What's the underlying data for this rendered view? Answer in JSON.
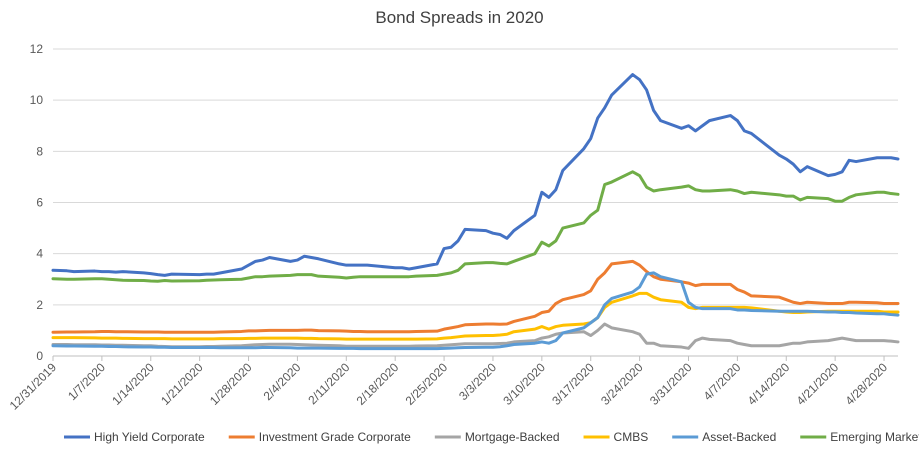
{
  "chart_data": {
    "type": "line",
    "title": "Bond Spreads in 2020",
    "xlabel": "",
    "ylabel": "",
    "ylim": [
      0,
      12
    ],
    "yticks": [
      0,
      2,
      4,
      6,
      8,
      10,
      12
    ],
    "x_tick_labels": [
      "12/31/2019",
      "1/7/2020",
      "1/14/2020",
      "1/21/2020",
      "1/28/2020",
      "2/4/2020",
      "2/11/2020",
      "2/18/2020",
      "2/25/2020",
      "3/3/2020",
      "3/10/2020",
      "3/17/2020",
      "3/24/2020",
      "3/31/2020",
      "4/7/2020",
      "4/14/2020",
      "4/21/2020",
      "4/28/2020"
    ],
    "grid": "horizontal",
    "legend_position": "bottom",
    "x": [
      "12/31/2019",
      "1/2/2020",
      "1/3/2020",
      "1/6/2020",
      "1/7/2020",
      "1/8/2020",
      "1/9/2020",
      "1/10/2020",
      "1/13/2020",
      "1/14/2020",
      "1/15/2020",
      "1/16/2020",
      "1/17/2020",
      "1/21/2020",
      "1/22/2020",
      "1/23/2020",
      "1/24/2020",
      "1/27/2020",
      "1/28/2020",
      "1/29/2020",
      "1/30/2020",
      "1/31/2020",
      "2/3/2020",
      "2/4/2020",
      "2/5/2020",
      "2/6/2020",
      "2/7/2020",
      "2/10/2020",
      "2/11/2020",
      "2/12/2020",
      "2/13/2020",
      "2/14/2020",
      "2/18/2020",
      "2/19/2020",
      "2/20/2020",
      "2/21/2020",
      "2/24/2020",
      "2/25/2020",
      "2/26/2020",
      "2/27/2020",
      "2/28/2020",
      "3/2/2020",
      "3/3/2020",
      "3/4/2020",
      "3/5/2020",
      "3/6/2020",
      "3/9/2020",
      "3/10/2020",
      "3/11/2020",
      "3/12/2020",
      "3/13/2020",
      "3/16/2020",
      "3/17/2020",
      "3/18/2020",
      "3/19/2020",
      "3/20/2020",
      "3/23/2020",
      "3/24/2020",
      "3/25/2020",
      "3/26/2020",
      "3/27/2020",
      "3/30/2020",
      "3/31/2020",
      "4/1/2020",
      "4/2/2020",
      "4/3/2020",
      "4/6/2020",
      "4/7/2020",
      "4/8/2020",
      "4/9/2020",
      "4/13/2020",
      "4/14/2020",
      "4/15/2020",
      "4/16/2020",
      "4/17/2020",
      "4/20/2020",
      "4/21/2020",
      "4/22/2020",
      "4/23/2020",
      "4/24/2020",
      "4/27/2020",
      "4/28/2020",
      "4/29/2020",
      "4/30/2020"
    ],
    "series": [
      {
        "name": "High Yield Corporate",
        "color": "#4472C4",
        "values": [
          3.35,
          3.33,
          3.3,
          3.32,
          3.3,
          3.3,
          3.28,
          3.3,
          3.25,
          3.22,
          3.18,
          3.15,
          3.2,
          3.18,
          3.2,
          3.2,
          3.25,
          3.4,
          3.55,
          3.7,
          3.75,
          3.85,
          3.7,
          3.75,
          3.9,
          3.85,
          3.8,
          3.6,
          3.55,
          3.55,
          3.55,
          3.55,
          3.45,
          3.45,
          3.4,
          3.45,
          3.6,
          4.2,
          4.25,
          4.5,
          4.95,
          4.9,
          4.8,
          4.75,
          4.6,
          4.9,
          5.5,
          6.4,
          6.2,
          6.5,
          7.25,
          8.1,
          8.5,
          9.3,
          9.7,
          10.2,
          11.0,
          10.8,
          10.4,
          9.6,
          9.2,
          8.9,
          9.0,
          8.8,
          9.0,
          9.2,
          9.4,
          9.2,
          8.8,
          8.7,
          7.85,
          7.7,
          7.5,
          7.2,
          7.4,
          7.05,
          7.1,
          7.2,
          7.65,
          7.6,
          7.75,
          7.75,
          7.75,
          7.7
        ]
      },
      {
        "name": "Investment Grade Corporate",
        "color": "#ED7D31",
        "values": [
          0.93,
          0.94,
          0.94,
          0.95,
          0.96,
          0.96,
          0.95,
          0.95,
          0.94,
          0.94,
          0.94,
          0.93,
          0.93,
          0.93,
          0.93,
          0.93,
          0.94,
          0.96,
          0.98,
          0.98,
          0.99,
          1.0,
          1.0,
          1.0,
          1.01,
          1.01,
          0.99,
          0.98,
          0.97,
          0.96,
          0.96,
          0.95,
          0.95,
          0.95,
          0.95,
          0.96,
          0.97,
          1.05,
          1.1,
          1.15,
          1.22,
          1.25,
          1.25,
          1.24,
          1.25,
          1.35,
          1.55,
          1.7,
          1.75,
          2.05,
          2.2,
          2.4,
          2.55,
          3.0,
          3.25,
          3.6,
          3.7,
          3.55,
          3.3,
          3.1,
          3.0,
          2.9,
          2.85,
          2.75,
          2.8,
          2.8,
          2.8,
          2.6,
          2.5,
          2.35,
          2.3,
          2.2,
          2.1,
          2.05,
          2.1,
          2.05,
          2.05,
          2.05,
          2.1,
          2.1,
          2.08,
          2.05,
          2.05,
          2.05
        ]
      },
      {
        "name": "Mortgage-Backed",
        "color": "#A5A5A5",
        "values": [
          0.45,
          0.45,
          0.44,
          0.44,
          0.43,
          0.43,
          0.42,
          0.42,
          0.4,
          0.4,
          0.38,
          0.37,
          0.36,
          0.36,
          0.37,
          0.37,
          0.38,
          0.4,
          0.42,
          0.44,
          0.45,
          0.46,
          0.46,
          0.45,
          0.44,
          0.43,
          0.42,
          0.4,
          0.38,
          0.38,
          0.38,
          0.38,
          0.38,
          0.38,
          0.38,
          0.39,
          0.4,
          0.42,
          0.44,
          0.46,
          0.48,
          0.48,
          0.48,
          0.49,
          0.5,
          0.55,
          0.6,
          0.7,
          0.75,
          0.85,
          0.9,
          0.95,
          0.8,
          1.0,
          1.25,
          1.1,
          0.95,
          0.85,
          0.5,
          0.5,
          0.4,
          0.35,
          0.3,
          0.6,
          0.7,
          0.65,
          0.6,
          0.5,
          0.45,
          0.4,
          0.4,
          0.45,
          0.5,
          0.5,
          0.55,
          0.6,
          0.65,
          0.7,
          0.65,
          0.6,
          0.6,
          0.6,
          0.58,
          0.55
        ]
      },
      {
        "name": "CMBS",
        "color": "#FFC000",
        "values": [
          0.72,
          0.72,
          0.72,
          0.71,
          0.7,
          0.7,
          0.7,
          0.69,
          0.68,
          0.68,
          0.68,
          0.68,
          0.67,
          0.67,
          0.67,
          0.67,
          0.68,
          0.68,
          0.69,
          0.69,
          0.7,
          0.7,
          0.7,
          0.7,
          0.69,
          0.69,
          0.68,
          0.67,
          0.66,
          0.66,
          0.66,
          0.66,
          0.66,
          0.66,
          0.66,
          0.66,
          0.67,
          0.7,
          0.72,
          0.75,
          0.78,
          0.8,
          0.8,
          0.82,
          0.85,
          0.95,
          1.05,
          1.15,
          1.05,
          1.15,
          1.2,
          1.25,
          1.3,
          1.5,
          1.9,
          2.1,
          2.35,
          2.45,
          2.45,
          2.3,
          2.2,
          2.1,
          1.9,
          1.85,
          1.9,
          1.9,
          1.9,
          1.9,
          1.9,
          1.88,
          1.75,
          1.72,
          1.7,
          1.7,
          1.72,
          1.75,
          1.75,
          1.75,
          1.75,
          1.75,
          1.75,
          1.72,
          1.72,
          1.72
        ]
      },
      {
        "name": "Asset-Backed",
        "color": "#5B9BD5",
        "values": [
          0.4,
          0.39,
          0.39,
          0.38,
          0.38,
          0.37,
          0.37,
          0.36,
          0.35,
          0.35,
          0.34,
          0.34,
          0.33,
          0.33,
          0.33,
          0.33,
          0.32,
          0.32,
          0.32,
          0.32,
          0.33,
          0.33,
          0.32,
          0.31,
          0.31,
          0.31,
          0.31,
          0.3,
          0.3,
          0.3,
          0.29,
          0.29,
          0.29,
          0.29,
          0.29,
          0.29,
          0.29,
          0.3,
          0.31,
          0.32,
          0.33,
          0.34,
          0.34,
          0.36,
          0.4,
          0.45,
          0.5,
          0.55,
          0.5,
          0.6,
          0.9,
          1.1,
          1.3,
          1.5,
          2.0,
          2.25,
          2.5,
          2.7,
          3.2,
          3.25,
          3.1,
          2.9,
          2.1,
          1.9,
          1.85,
          1.85,
          1.85,
          1.8,
          1.8,
          1.78,
          1.75,
          1.75,
          1.75,
          1.75,
          1.75,
          1.72,
          1.72,
          1.7,
          1.7,
          1.68,
          1.65,
          1.65,
          1.62,
          1.6
        ]
      },
      {
        "name": "Emerging Market",
        "color": "#70AD47",
        "values": [
          3.02,
          3.0,
          3.0,
          3.02,
          3.02,
          3.0,
          2.98,
          2.96,
          2.95,
          2.93,
          2.92,
          2.95,
          2.93,
          2.94,
          2.96,
          2.97,
          2.98,
          3.0,
          3.05,
          3.1,
          3.1,
          3.12,
          3.15,
          3.18,
          3.18,
          3.18,
          3.12,
          3.08,
          3.05,
          3.08,
          3.1,
          3.1,
          3.1,
          3.1,
          3.1,
          3.12,
          3.15,
          3.2,
          3.25,
          3.35,
          3.6,
          3.65,
          3.65,
          3.62,
          3.6,
          3.7,
          4.0,
          4.45,
          4.3,
          4.5,
          5.0,
          5.2,
          5.5,
          5.7,
          6.7,
          6.8,
          7.2,
          7.05,
          6.6,
          6.45,
          6.5,
          6.6,
          6.65,
          6.5,
          6.45,
          6.45,
          6.5,
          6.45,
          6.35,
          6.4,
          6.3,
          6.25,
          6.25,
          6.1,
          6.2,
          6.15,
          6.05,
          6.05,
          6.2,
          6.3,
          6.4,
          6.4,
          6.35,
          6.32
        ]
      }
    ]
  }
}
